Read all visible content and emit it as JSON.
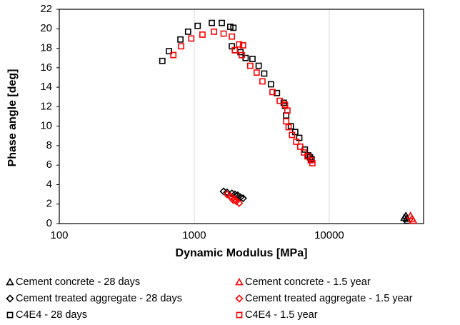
{
  "chart_data": {
    "type": "scatter",
    "xlabel": "Dynamic Modulus [MPa]",
    "ylabel": "Phase angle [deg]",
    "xscale": "log",
    "xlim": [
      100,
      50000
    ],
    "xticks": [
      100,
      1000,
      10000
    ],
    "ylim": [
      0,
      22
    ],
    "yticks": [
      0,
      2,
      4,
      6,
      8,
      10,
      12,
      14,
      16,
      18,
      20,
      22
    ],
    "grid": "x",
    "series": [
      {
        "name": "Cement concrete - 28 days",
        "color": "#000000",
        "marker": "triangle",
        "x": [
          36000,
          37000,
          37500,
          38000
        ],
        "values": [
          0.6,
          0.8,
          0.5,
          0.3
        ]
      },
      {
        "name": "Cement concrete - 1.5 year",
        "color": "#ff0000",
        "marker": "triangle",
        "x": [
          40000,
          41000,
          42000
        ],
        "values": [
          0.8,
          0.5,
          0.3
        ]
      },
      {
        "name": "Cement treated aggregate - 28 days",
        "color": "#000000",
        "marker": "diamond",
        "x": [
          1650,
          1750,
          1900,
          2000,
          2100,
          2200,
          2300,
          1850
        ],
        "values": [
          3.3,
          3.2,
          3.1,
          3.0,
          2.9,
          2.7,
          2.6,
          2.8
        ]
      },
      {
        "name": "Cement treated aggregate - 1.5 year",
        "color": "#ff0000",
        "marker": "diamond",
        "x": [
          1750,
          1850,
          1900,
          2000,
          2050,
          2150,
          1950
        ],
        "values": [
          3.0,
          2.8,
          2.6,
          2.5,
          2.3,
          2.1,
          2.4
        ]
      },
      {
        "name": "C4E4 - 28 days",
        "color": "#000000",
        "marker": "square",
        "x": [
          580,
          650,
          790,
          900,
          1060,
          1350,
          1600,
          1850,
          1950,
          1900,
          2000,
          2200,
          2400,
          2700,
          3000,
          3300,
          3700,
          4100,
          4600,
          4700,
          4800,
          5200,
          5600,
          6000,
          6600,
          7000,
          7200,
          7400
        ],
        "values": [
          16.7,
          17.7,
          18.9,
          19.7,
          20.3,
          20.6,
          20.6,
          20.2,
          20.1,
          18.2,
          17.8,
          17.6,
          17.0,
          16.9,
          16.2,
          15.4,
          14.3,
          13.4,
          12.4,
          12.1,
          11.1,
          10.0,
          9.4,
          8.8,
          7.6,
          7.0,
          6.8,
          6.6
        ]
      },
      {
        "name": "C4E4 - 1.5 year",
        "color": "#ff0000",
        "marker": "square",
        "x": [
          700,
          800,
          950,
          1150,
          1400,
          1650,
          1900,
          2000,
          2150,
          2300,
          2250,
          2600,
          2900,
          3200,
          3800,
          4300,
          4700,
          4900,
          4800,
          5000,
          5300,
          5700,
          6100,
          6500,
          6900,
          7300,
          7500
        ],
        "values": [
          17.3,
          18.2,
          19.0,
          19.4,
          19.7,
          19.5,
          19.2,
          17.8,
          18.4,
          18.3,
          17.3,
          16.2,
          15.5,
          14.6,
          13.5,
          12.6,
          12.2,
          11.6,
          10.5,
          9.9,
          9.1,
          8.4,
          7.9,
          7.3,
          6.9,
          6.5,
          6.2
        ]
      }
    ]
  }
}
